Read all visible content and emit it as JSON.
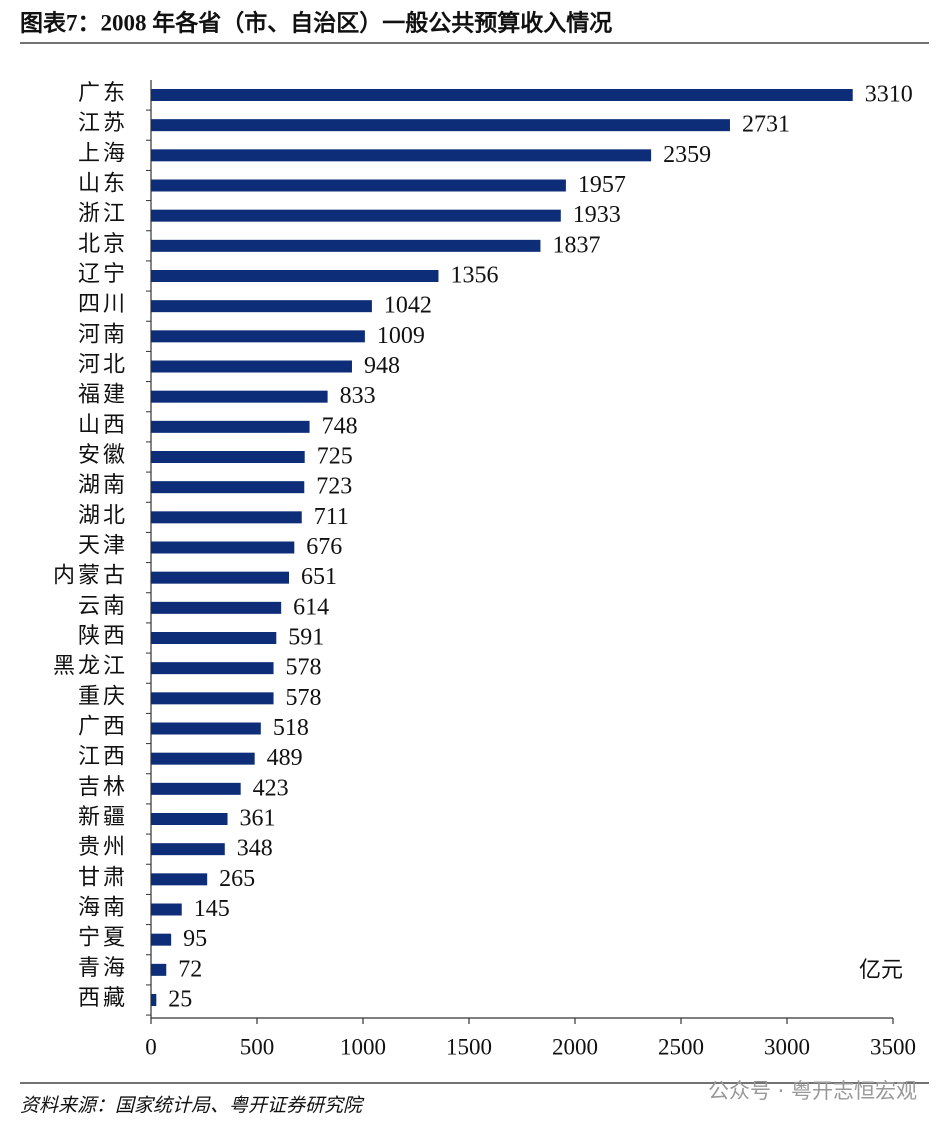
{
  "chart_data": {
    "type": "bar",
    "orientation": "horizontal",
    "title": "图表7：2008 年各省（市、自治区）一般公共预算收入情况",
    "unit": "亿元",
    "source": "资料来源：国家统计局、粤开证券研究院",
    "watermark": "公众号 · 粤开志恒宏观",
    "categories": [
      "广东",
      "江苏",
      "上海",
      "山东",
      "浙江",
      "北京",
      "辽宁",
      "四川",
      "河南",
      "河北",
      "福建",
      "山西",
      "安徽",
      "湖南",
      "湖北",
      "天津",
      "内蒙古",
      "云南",
      "陕西",
      "黑龙江",
      "重庆",
      "广西",
      "江西",
      "吉林",
      "新疆",
      "贵州",
      "甘肃",
      "海南",
      "宁夏",
      "青海",
      "西藏"
    ],
    "values": [
      3310,
      2731,
      2359,
      1957,
      1933,
      1837,
      1356,
      1042,
      1009,
      948,
      833,
      748,
      725,
      723,
      711,
      676,
      651,
      614,
      591,
      578,
      578,
      518,
      489,
      423,
      361,
      348,
      265,
      145,
      95,
      72,
      25
    ],
    "color": "#0d2d78",
    "xlim": [
      0,
      3500
    ],
    "xticks": [
      0,
      500,
      1000,
      1500,
      2000,
      2500,
      3000,
      3500
    ]
  }
}
